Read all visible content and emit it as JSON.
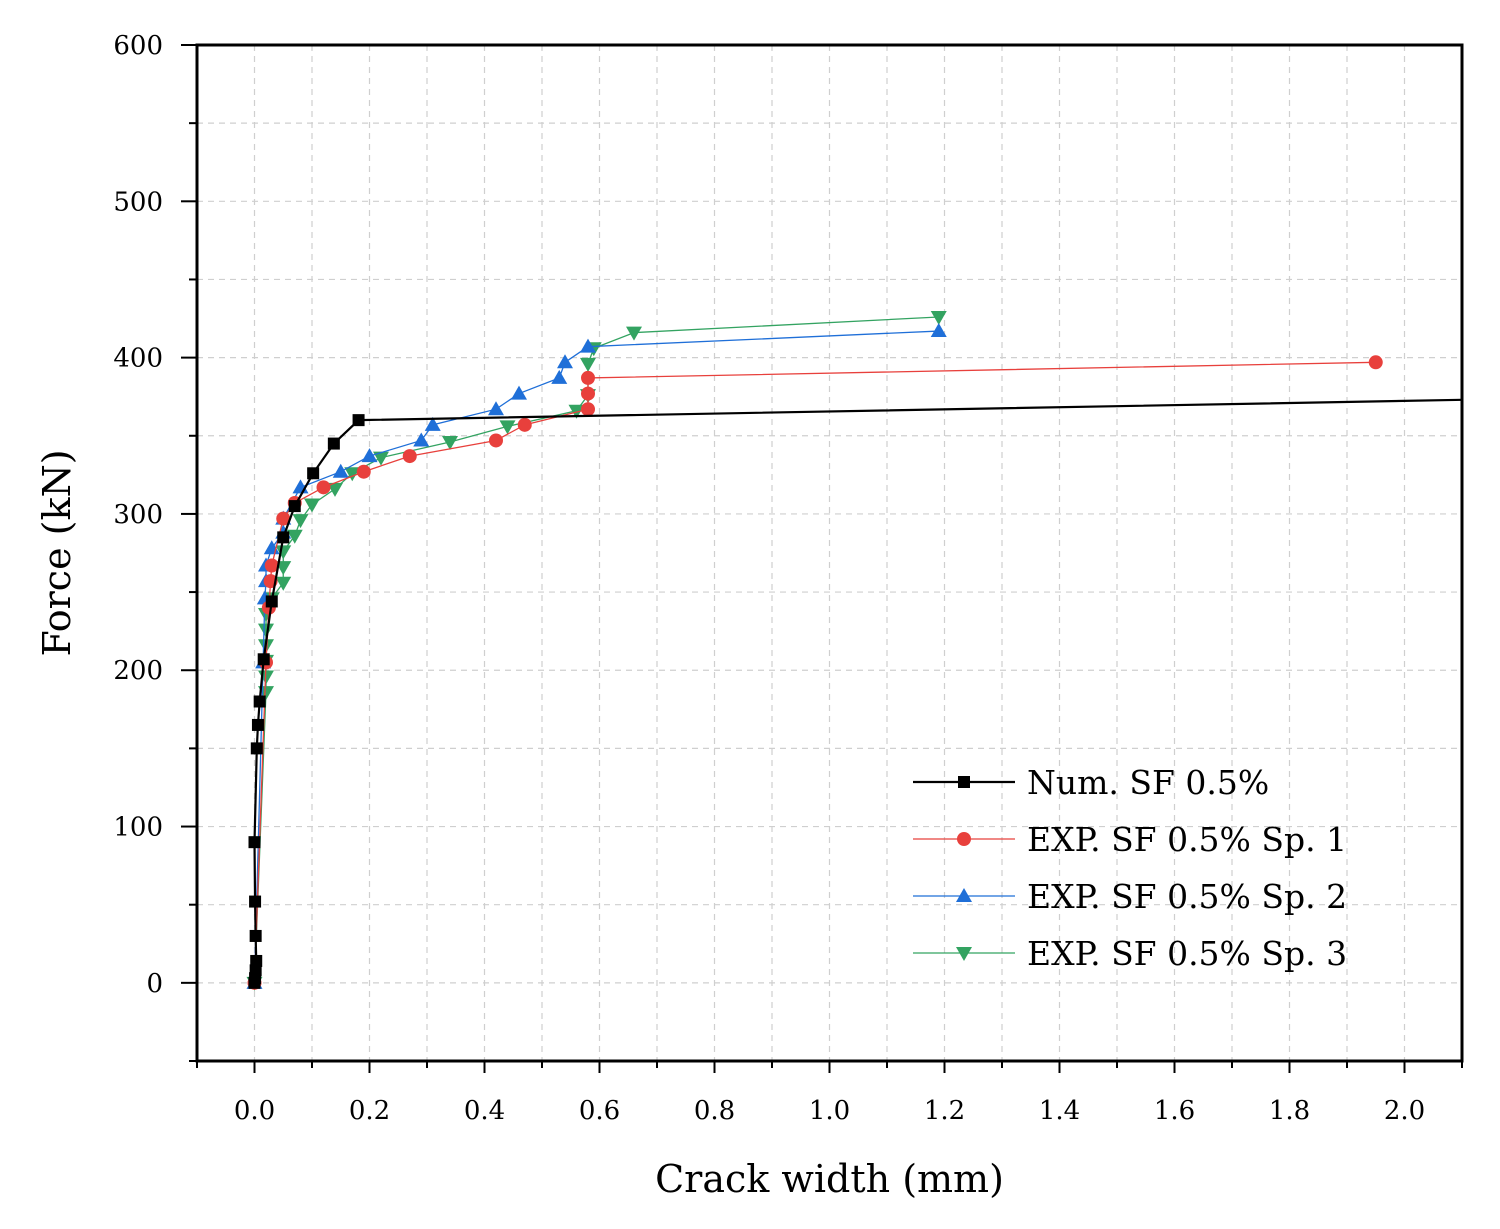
{
  "chart_data": {
    "type": "line",
    "title": "",
    "xlabel": "Crack width (mm)",
    "ylabel": "Force (kN)",
    "xlim": [
      -0.1,
      2.1
    ],
    "ylim": [
      -50,
      600
    ],
    "xticks": [
      0.0,
      0.2,
      0.4,
      0.6,
      0.8,
      1.0,
      1.2,
      1.4,
      1.6,
      1.8,
      2.0
    ],
    "xtick_labels": [
      "0.0",
      "0.2",
      "0.4",
      "0.6",
      "0.8",
      "1.0",
      "1.2",
      "1.4",
      "1.6",
      "1.8",
      "2.0"
    ],
    "yticks": [
      0,
      100,
      200,
      300,
      400,
      500,
      600
    ],
    "ytick_labels": [
      "0",
      "100",
      "200",
      "300",
      "400",
      "500",
      "600"
    ],
    "grid": true,
    "legend_position": "bottom-right",
    "series": [
      {
        "name": "Num. SF 0.5%",
        "color": "#000000",
        "marker": "square",
        "points": [
          [
            0.0,
            0
          ],
          [
            0.001,
            3
          ],
          [
            0.002,
            8
          ],
          [
            0.003,
            14
          ],
          [
            0.002,
            30
          ],
          [
            0.001,
            52
          ],
          [
            0.0,
            90
          ],
          [
            0.004,
            150
          ],
          [
            0.006,
            165
          ],
          [
            0.009,
            180
          ],
          [
            0.016,
            207
          ],
          [
            0.03,
            244
          ],
          [
            0.05,
            285
          ],
          [
            0.07,
            305
          ],
          [
            0.102,
            326
          ],
          [
            0.138,
            345
          ],
          [
            0.181,
            360
          ]
        ],
        "line_end": [
          2.1,
          373
        ]
      },
      {
        "name": "EXP. SF 0.5% Sp. 1",
        "color": "#e8403c",
        "marker": "circle",
        "points": [
          [
            0.0,
            0
          ],
          [
            0.02,
            205
          ],
          [
            0.025,
            240
          ],
          [
            0.028,
            257
          ],
          [
            0.03,
            267
          ],
          [
            0.05,
            297
          ],
          [
            0.07,
            307
          ],
          [
            0.12,
            317
          ],
          [
            0.19,
            327
          ],
          [
            0.27,
            337
          ],
          [
            0.42,
            347
          ],
          [
            0.47,
            357
          ],
          [
            0.58,
            367
          ],
          [
            0.58,
            377
          ],
          [
            0.58,
            387
          ],
          [
            1.95,
            397
          ]
        ]
      },
      {
        "name": "EXP. SF 0.5% Sp. 2",
        "color": "#1f6fd8",
        "marker": "triangle-up",
        "points": [
          [
            0.0,
            0
          ],
          [
            0.015,
            205
          ],
          [
            0.018,
            246
          ],
          [
            0.02,
            257
          ],
          [
            0.02,
            267
          ],
          [
            0.03,
            278
          ],
          [
            0.05,
            288
          ],
          [
            0.05,
            297
          ],
          [
            0.08,
            317
          ],
          [
            0.15,
            327
          ],
          [
            0.2,
            337
          ],
          [
            0.29,
            347
          ],
          [
            0.31,
            357
          ],
          [
            0.42,
            367
          ],
          [
            0.46,
            377
          ],
          [
            0.53,
            387
          ],
          [
            0.54,
            397
          ],
          [
            0.58,
            407
          ],
          [
            1.19,
            417
          ]
        ]
      },
      {
        "name": "EXP. SF 0.5% Sp. 3",
        "color": "#33a361",
        "marker": "triangle-down",
        "points": [
          [
            0.0,
            0
          ],
          [
            0.02,
            186
          ],
          [
            0.02,
            196
          ],
          [
            0.02,
            206
          ],
          [
            0.02,
            216
          ],
          [
            0.02,
            226
          ],
          [
            0.02,
            236
          ],
          [
            0.03,
            246
          ],
          [
            0.05,
            256
          ],
          [
            0.05,
            266
          ],
          [
            0.05,
            276
          ],
          [
            0.07,
            286
          ],
          [
            0.08,
            296
          ],
          [
            0.1,
            306
          ],
          [
            0.14,
            316
          ],
          [
            0.17,
            326
          ],
          [
            0.22,
            336
          ],
          [
            0.34,
            346
          ],
          [
            0.44,
            356
          ],
          [
            0.56,
            366
          ],
          [
            0.58,
            376
          ],
          [
            0.58,
            396
          ],
          [
            0.59,
            406
          ],
          [
            0.66,
            416
          ],
          [
            1.19,
            426
          ]
        ]
      }
    ]
  }
}
